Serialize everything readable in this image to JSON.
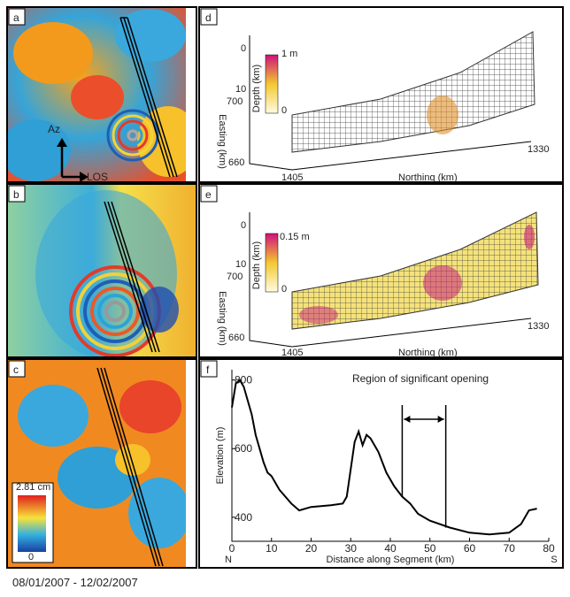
{
  "panels": {
    "a": {
      "label": "a",
      "azimuth": "Az",
      "los": "LOS"
    },
    "b": {
      "label": "b"
    },
    "c": {
      "label": "c",
      "scale_max": "2.81 cm",
      "scale_min": "0"
    },
    "d": {
      "label": "d",
      "scale_max": "1 m",
      "scale_min": "0",
      "depth_label": "Depth (km)",
      "depth_ticks": [
        "0",
        "10"
      ],
      "easting_label": "Easting (km)",
      "easting_ticks": [
        "700",
        "660"
      ],
      "northing_label": "Northing (km)",
      "northing_ticks": [
        "1405",
        "1330"
      ]
    },
    "e": {
      "label": "e",
      "scale_max": "0.15 m",
      "scale_min": "0",
      "depth_label": "Depth (km)",
      "depth_ticks": [
        "0",
        "10"
      ],
      "easting_label": "Easting (km)",
      "easting_ticks": [
        "700",
        "660"
      ],
      "northing_label": "Northing (km)",
      "northing_ticks": [
        "1405",
        "1330"
      ]
    }
  },
  "date_range": "08/01/2007 - 12/02/2007",
  "chart_data": {
    "type": "line",
    "panel_label": "f",
    "x_label": "Distance along Segment (km)",
    "y_label": "Elevation (m)",
    "x_start_label": "N",
    "x_end_label": "S",
    "annotation": "Region of significant opening",
    "annotation_span": [
      43,
      54
    ],
    "x": [
      0,
      1,
      2,
      3,
      5,
      6,
      8,
      9,
      10,
      12,
      15,
      17,
      20,
      25,
      28,
      29,
      31,
      32,
      33,
      34,
      35,
      37,
      39,
      41,
      43,
      45,
      47,
      50,
      55,
      60,
      65,
      70,
      73,
      75,
      77
    ],
    "values": [
      720,
      790,
      800,
      780,
      700,
      640,
      560,
      530,
      520,
      480,
      440,
      420,
      430,
      435,
      440,
      460,
      620,
      650,
      610,
      640,
      630,
      590,
      530,
      490,
      460,
      440,
      410,
      390,
      370,
      355,
      350,
      355,
      380,
      420,
      425
    ],
    "color": "#000000",
    "xlim": [
      0,
      80
    ],
    "xticks": [
      0,
      10,
      20,
      30,
      40,
      50,
      60,
      70,
      80
    ],
    "ylim": [
      330,
      830
    ],
    "yticks": [
      400,
      600,
      800
    ]
  }
}
